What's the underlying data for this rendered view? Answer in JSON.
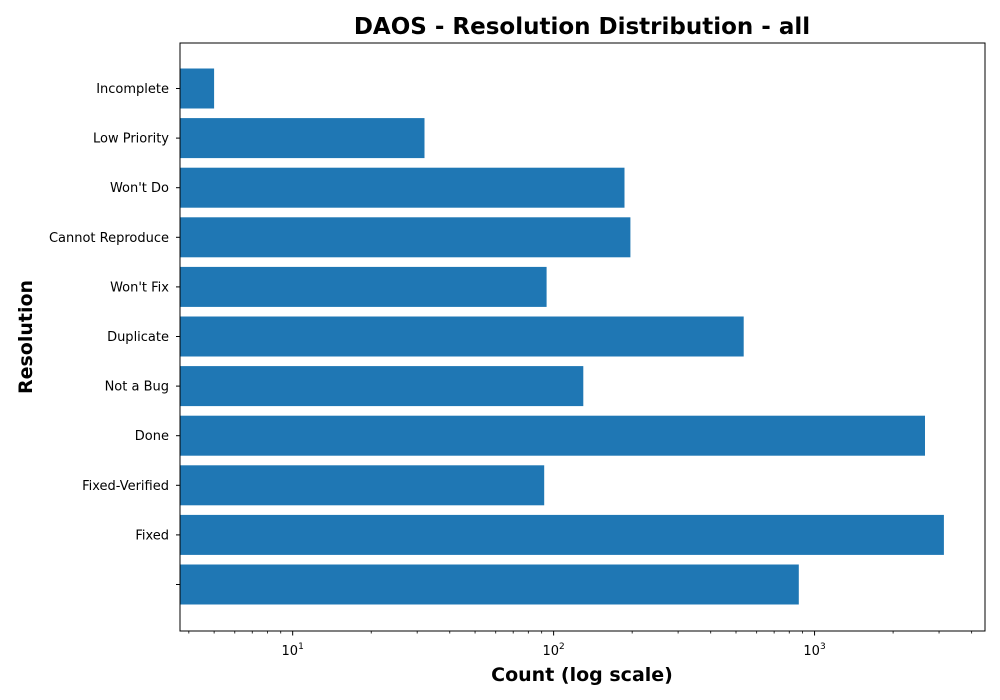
{
  "chart_data": {
    "type": "bar",
    "orientation": "horizontal",
    "title": "DAOS - Resolution Distribution - all",
    "xlabel": "Count (log scale)",
    "ylabel": "Resolution",
    "xscale": "log",
    "xlim": [
      3.7,
      4500
    ],
    "grid": false,
    "categories": [
      "",
      "Fixed",
      "Fixed-Verified",
      "Done",
      "Not a Bug",
      "Duplicate",
      "Won't Fix",
      "Cannot Reproduce",
      "Won't Do",
      "Low Priority",
      "Incomplete"
    ],
    "values": [
      870,
      3130,
      92,
      2650,
      130,
      535,
      94,
      197,
      187,
      32,
      5
    ],
    "bar_color": "#1f77b4",
    "xticks": [
      {
        "base": "10",
        "exp": "1",
        "value": 10
      },
      {
        "base": "10",
        "exp": "2",
        "value": 100
      },
      {
        "base": "10",
        "exp": "3",
        "value": 1000
      }
    ]
  }
}
